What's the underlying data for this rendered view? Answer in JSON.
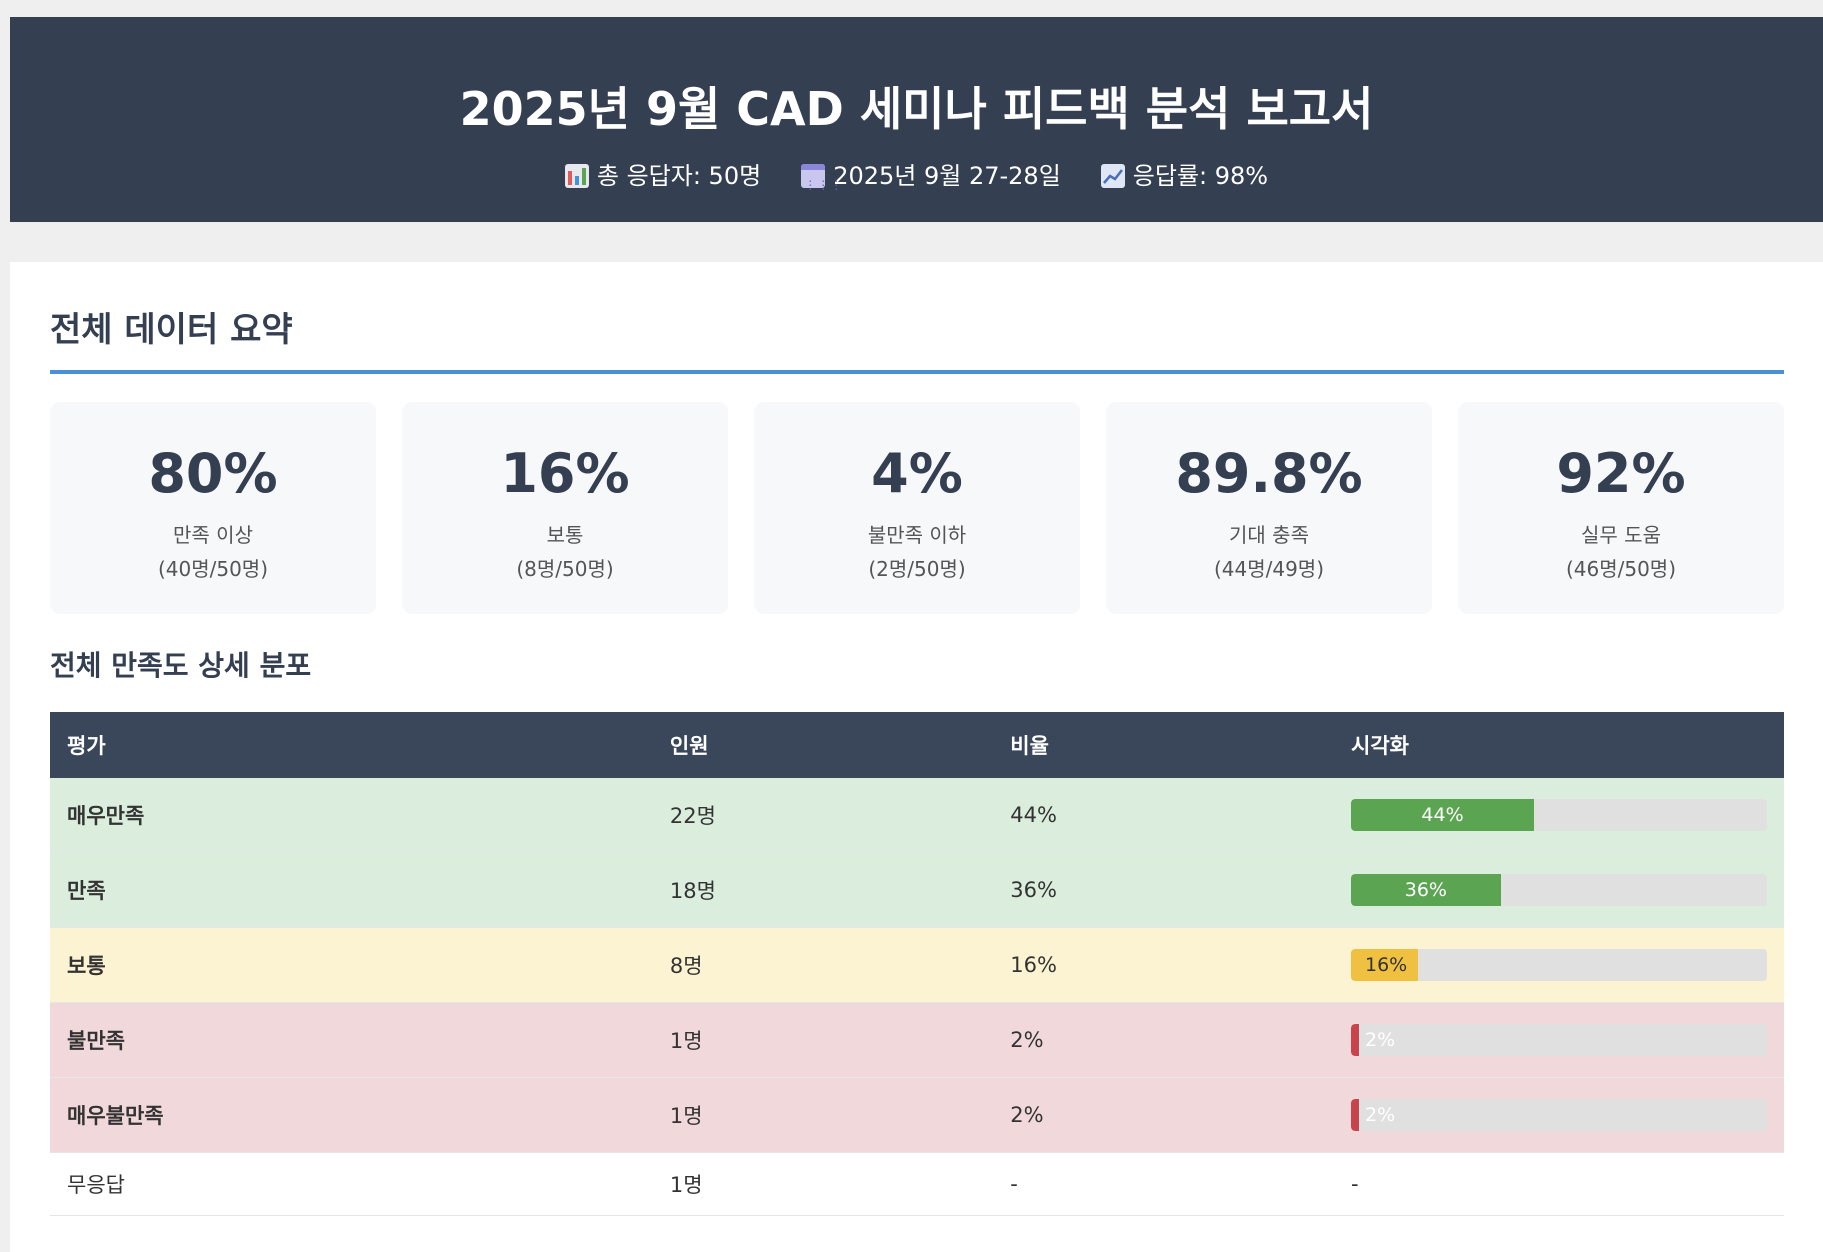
{
  "header": {
    "title": "2025년 9월 CAD 세미나 피드백 분석 보고서",
    "meta": [
      {
        "icon": "bar-chart-icon",
        "text": "총 응답자: 50명"
      },
      {
        "icon": "calendar-icon",
        "text": "2025년 9월 27-28일"
      },
      {
        "icon": "trend-chart-icon",
        "text": "응답률: 98%"
      }
    ]
  },
  "summary": {
    "title": "전체 데이터 요약",
    "stats": [
      {
        "value": "80%",
        "label": "만족 이상",
        "sub": "(40명/50명)"
      },
      {
        "value": "16%",
        "label": "보통",
        "sub": "(8명/50명)"
      },
      {
        "value": "4%",
        "label": "불만족 이하",
        "sub": "(2명/50명)"
      },
      {
        "value": "89.8%",
        "label": "기대 충족",
        "sub": "(44명/49명)"
      },
      {
        "value": "92%",
        "label": "실무 도움",
        "sub": "(46명/50명)"
      }
    ]
  },
  "distribution": {
    "title": "전체 만족도 상세 분포",
    "columns": [
      "평가",
      "인원",
      "비율",
      "시각화"
    ],
    "rows": [
      {
        "grade": "매우만족",
        "count": "22명",
        "ratio": "44%",
        "bar_label": "44%",
        "bar_pct": 44,
        "tone": "good"
      },
      {
        "grade": "만족",
        "count": "18명",
        "ratio": "36%",
        "bar_label": "36%",
        "bar_pct": 36,
        "tone": "good"
      },
      {
        "grade": "보통",
        "count": "8명",
        "ratio": "16%",
        "bar_label": "16%",
        "bar_pct": 16,
        "tone": "mid"
      },
      {
        "grade": "불만족",
        "count": "1명",
        "ratio": "2%",
        "bar_label": "2%",
        "bar_pct": 2,
        "tone": "bad"
      },
      {
        "grade": "매우불만족",
        "count": "1명",
        "ratio": "2%",
        "bar_label": "2%",
        "bar_pct": 2,
        "tone": "bad"
      },
      {
        "grade": "무응답",
        "count": "1명",
        "ratio": "-",
        "bar_label": "-",
        "bar_pct": null,
        "tone": "none"
      }
    ],
    "colors": {
      "good": "#5ba552",
      "mid": "#f0c040",
      "bad": "#c9434b"
    }
  }
}
